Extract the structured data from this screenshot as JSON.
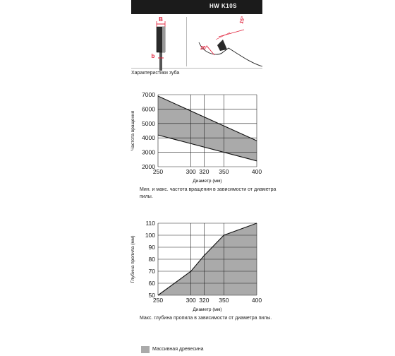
{
  "header": {
    "title": "HW K10S"
  },
  "teeth": {
    "caption": "Характеристики зуба",
    "label_B": "B",
    "label_b": "b",
    "angle_15": "15°",
    "angle_20": "20°",
    "colors": {
      "accent": "#e0203a"
    }
  },
  "chart_data": [
    {
      "type": "area",
      "ylabel": "Частота вращения",
      "xlabel": "Диаметр (мм)",
      "caption": "Мин. и макс. частота вращения в зависимости от диаметра пилы.",
      "x_ticks": [
        250,
        300,
        320,
        350,
        400
      ],
      "y_ticks": [
        2000,
        3000,
        4000,
        5000,
        6000,
        7000
      ],
      "xlim": [
        250,
        400
      ],
      "ylim": [
        2000,
        7000
      ],
      "series": [
        {
          "x": [
            250,
            400
          ],
          "values": [
            6900,
            3800
          ]
        },
        {
          "x": [
            250,
            400
          ],
          "values": [
            4200,
            2400
          ]
        }
      ],
      "fill": "#aaaaaa",
      "grid": true
    },
    {
      "type": "area",
      "ylabel": "Глубина пропила (мм)",
      "xlabel": "Диаметр (мм)",
      "caption": "Макс. глубина пропила в зависимости от диаметра пилы.",
      "x_ticks": [
        250,
        300,
        320,
        350,
        400
      ],
      "y_ticks": [
        50,
        60,
        70,
        80,
        90,
        100,
        110
      ],
      "xlim": [
        250,
        400
      ],
      "ylim": [
        50,
        110
      ],
      "series": [
        {
          "x": [
            250,
            300,
            320,
            350,
            400
          ],
          "values": [
            50,
            70,
            83,
            100,
            110
          ]
        }
      ],
      "fill": "#aaaaaa",
      "grid": true
    }
  ],
  "legend": {
    "label": "Массивная древесина",
    "color": "#aaaaaa"
  }
}
